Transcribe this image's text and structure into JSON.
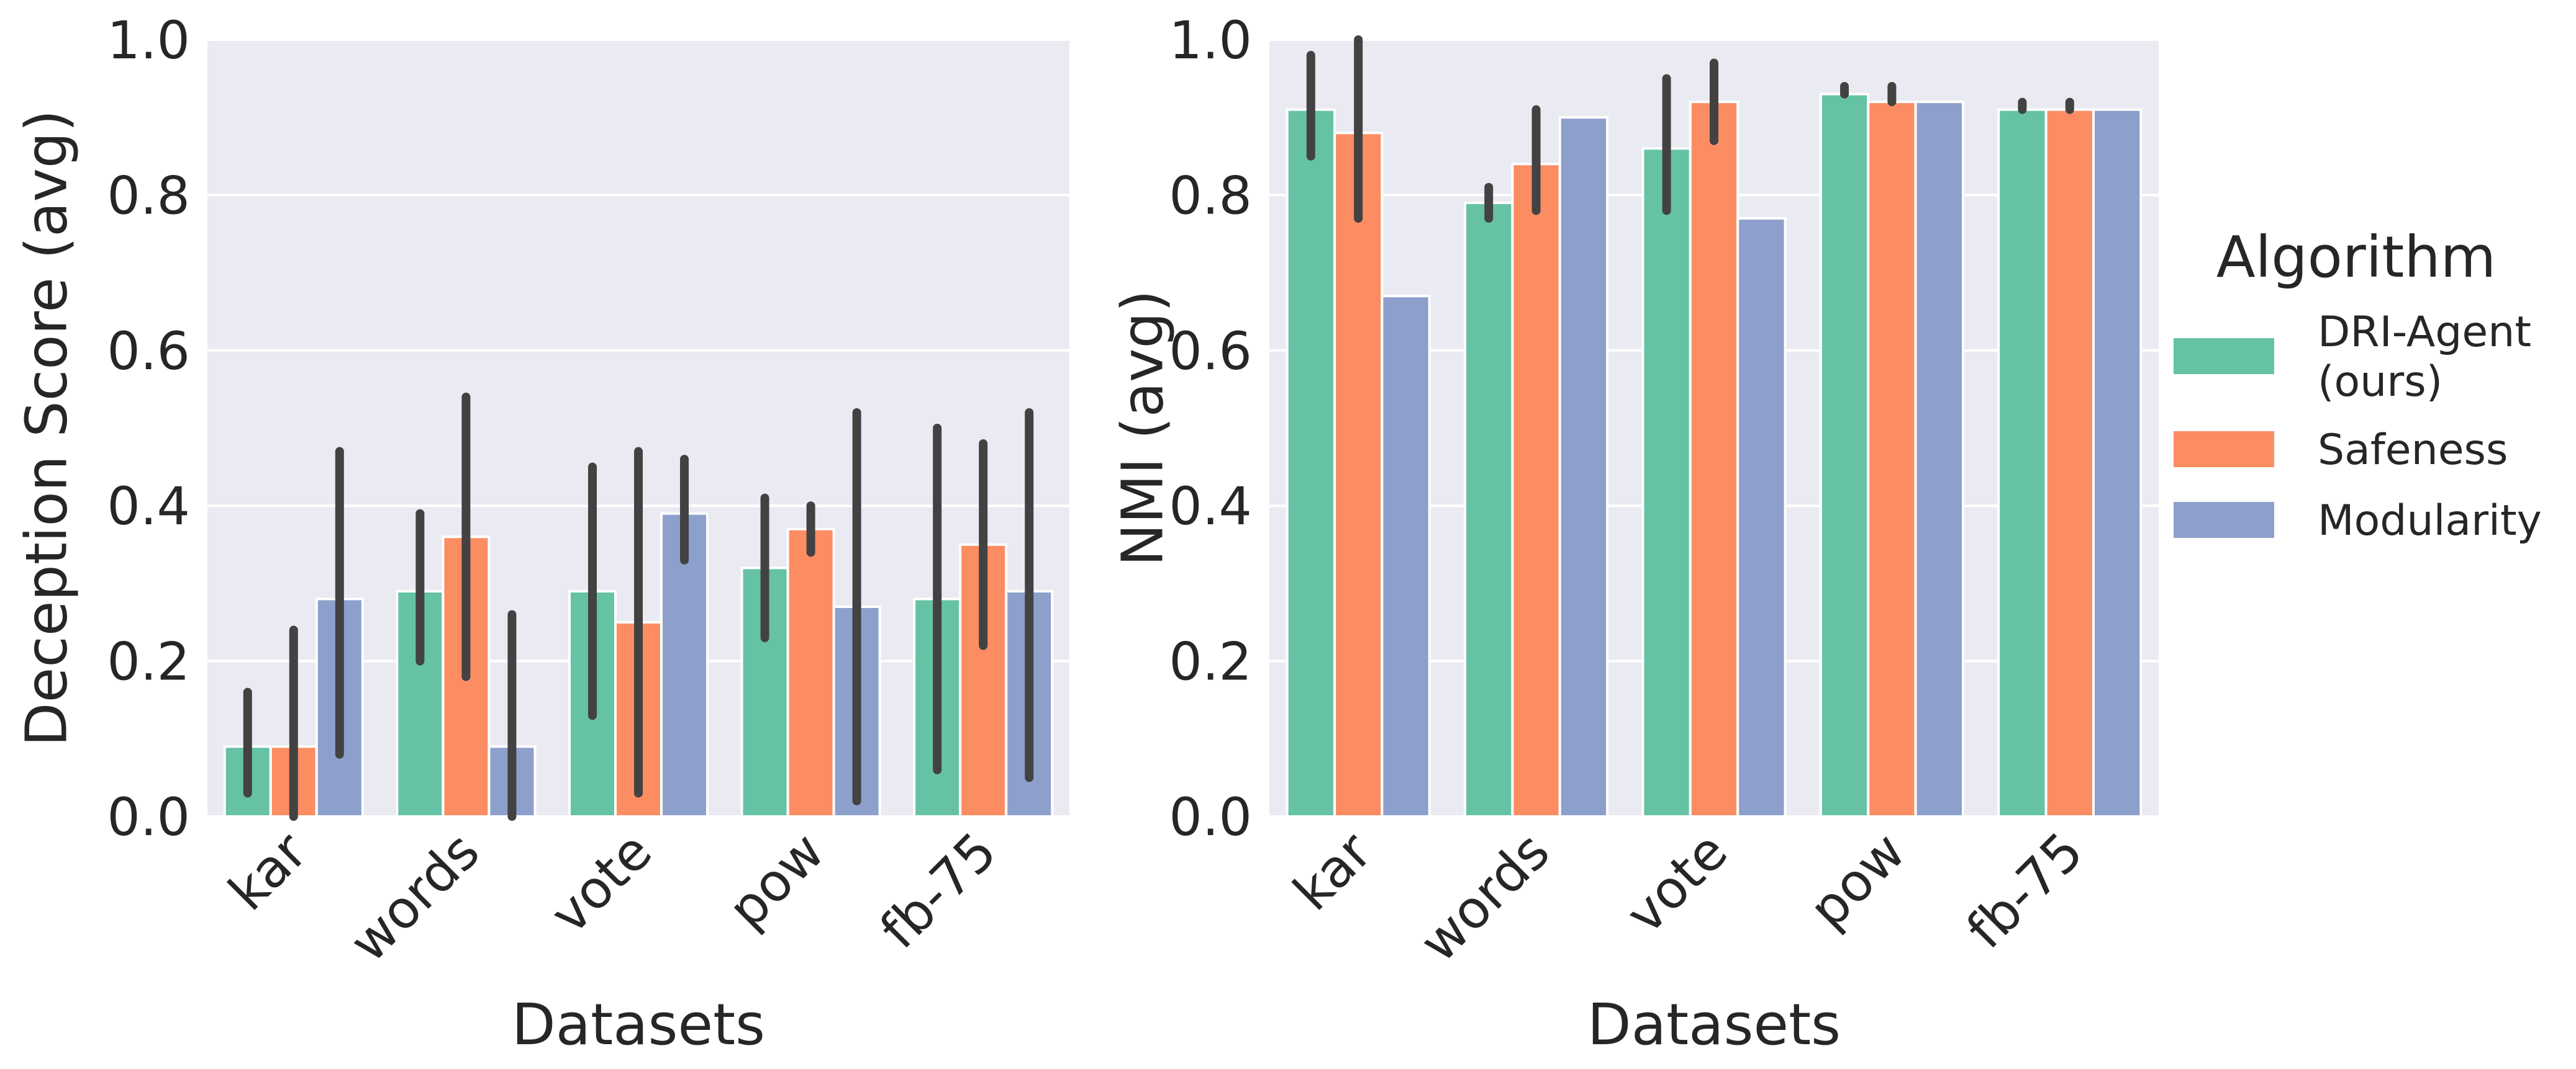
{
  "chart_data": [
    {
      "type": "bar",
      "xlabel": "Datasets",
      "ylabel": "Deception Score (avg)",
      "ylim": [
        0,
        1.0
      ],
      "yticks": [
        "0.0",
        "0.2",
        "0.4",
        "0.6",
        "0.8",
        "1.0"
      ],
      "categories": [
        "kar",
        "words",
        "vote",
        "pow",
        "fb-75"
      ],
      "grid": true,
      "series": [
        {
          "name": "DRI-Agent (ours)",
          "values": [
            0.09,
            0.29,
            0.29,
            0.32,
            0.28
          ],
          "err_low": [
            0.03,
            0.2,
            0.13,
            0.23,
            0.06
          ],
          "err_high": [
            0.16,
            0.39,
            0.45,
            0.41,
            0.5
          ]
        },
        {
          "name": "Safeness",
          "values": [
            0.09,
            0.36,
            0.25,
            0.37,
            0.35
          ],
          "err_low": [
            0.0,
            0.18,
            0.03,
            0.34,
            0.22
          ],
          "err_high": [
            0.24,
            0.54,
            0.47,
            0.4,
            0.48
          ]
        },
        {
          "name": "Modularity",
          "values": [
            0.28,
            0.09,
            0.39,
            0.27,
            0.29
          ],
          "err_low": [
            0.08,
            0.0,
            0.33,
            0.02,
            0.05
          ],
          "err_high": [
            0.47,
            0.26,
            0.46,
            0.52,
            0.52
          ]
        }
      ]
    },
    {
      "type": "bar",
      "xlabel": "Datasets",
      "ylabel": "NMI (avg)",
      "ylim": [
        0,
        1.0
      ],
      "yticks": [
        "0.0",
        "0.2",
        "0.4",
        "0.6",
        "0.8",
        "1.0"
      ],
      "categories": [
        "kar",
        "words",
        "vote",
        "pow",
        "fb-75"
      ],
      "grid": true,
      "series": [
        {
          "name": "DRI-Agent (ours)",
          "values": [
            0.91,
            0.79,
            0.86,
            0.93,
            0.91
          ],
          "err_low": [
            0.85,
            0.77,
            0.78,
            0.93,
            0.91
          ],
          "err_high": [
            0.98,
            0.81,
            0.95,
            0.94,
            0.91
          ]
        },
        {
          "name": "Safeness",
          "values": [
            0.88,
            0.84,
            0.92,
            0.92,
            0.91
          ],
          "err_low": [
            0.77,
            0.78,
            0.87,
            0.92,
            0.91
          ],
          "err_high": [
            1.0,
            0.91,
            0.97,
            0.94,
            0.91
          ]
        },
        {
          "name": "Modularity",
          "values": [
            0.67,
            0.9,
            0.77,
            0.92,
            0.91
          ],
          "err_low": null,
          "err_high": null
        }
      ]
    }
  ],
  "legend": {
    "title": "Algorithm",
    "placement": "right",
    "entries": [
      {
        "label_lines": [
          "DRI-Agent",
          "(ours)"
        ]
      },
      {
        "label_lines": [
          "Safeness"
        ]
      },
      {
        "label_lines": [
          "Modularity"
        ]
      }
    ]
  },
  "colors": {
    "series": [
      "#66c2a5",
      "#fc8d62",
      "#8da0cb"
    ],
    "plot_background": "#eaeaf2",
    "grid": "#ffffff",
    "error_bar": "#424242",
    "text": "#262626"
  }
}
